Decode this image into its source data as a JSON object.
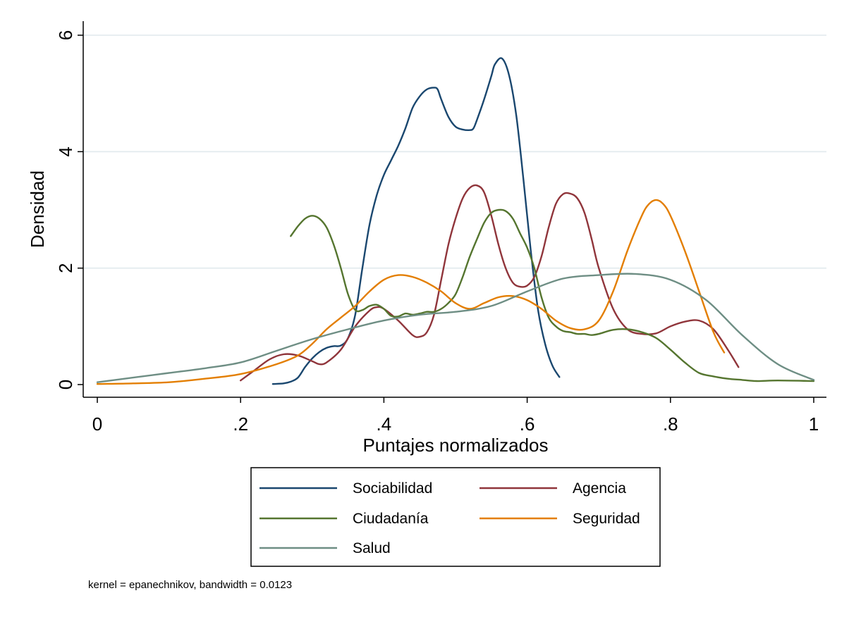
{
  "chart_data": {
    "type": "line",
    "title": "",
    "xlabel": "Puntajes normalizados",
    "ylabel": "Densidad",
    "note": "kernel = epanechnikov, bandwidth = 0.0123",
    "xlim": [
      0,
      1
    ],
    "ylim": [
      0,
      6
    ],
    "x_ticks": [
      0,
      0.2,
      0.4,
      0.6,
      0.8,
      1
    ],
    "x_tick_labels": [
      "0",
      ".2",
      ".4",
      ".6",
      ".8",
      "1"
    ],
    "y_ticks": [
      0,
      2,
      4,
      6
    ],
    "y_tick_labels": [
      "0",
      "2",
      "4",
      "6"
    ],
    "grid": true,
    "legend_position": "bottom",
    "series": [
      {
        "name": "Sociabilidad",
        "color": "#1a476f",
        "points": [
          [
            0.245,
            0.01
          ],
          [
            0.26,
            0.02
          ],
          [
            0.27,
            0.05
          ],
          [
            0.28,
            0.12
          ],
          [
            0.29,
            0.3
          ],
          [
            0.3,
            0.45
          ],
          [
            0.31,
            0.56
          ],
          [
            0.32,
            0.63
          ],
          [
            0.33,
            0.66
          ],
          [
            0.34,
            0.67
          ],
          [
            0.35,
            0.8
          ],
          [
            0.36,
            1.2
          ],
          [
            0.37,
            2.0
          ],
          [
            0.38,
            2.75
          ],
          [
            0.39,
            3.25
          ],
          [
            0.4,
            3.6
          ],
          [
            0.41,
            3.85
          ],
          [
            0.42,
            4.1
          ],
          [
            0.43,
            4.4
          ],
          [
            0.44,
            4.75
          ],
          [
            0.45,
            4.95
          ],
          [
            0.46,
            5.07
          ],
          [
            0.47,
            5.1
          ],
          [
            0.475,
            5.07
          ],
          [
            0.48,
            4.9
          ],
          [
            0.49,
            4.6
          ],
          [
            0.5,
            4.43
          ],
          [
            0.51,
            4.38
          ],
          [
            0.52,
            4.37
          ],
          [
            0.525,
            4.4
          ],
          [
            0.53,
            4.55
          ],
          [
            0.54,
            4.9
          ],
          [
            0.55,
            5.3
          ],
          [
            0.555,
            5.5
          ],
          [
            0.565,
            5.6
          ],
          [
            0.575,
            5.3
          ],
          [
            0.585,
            4.6
          ],
          [
            0.595,
            3.5
          ],
          [
            0.605,
            2.3
          ],
          [
            0.615,
            1.3
          ],
          [
            0.625,
            0.7
          ],
          [
            0.635,
            0.33
          ],
          [
            0.645,
            0.13
          ]
        ]
      },
      {
        "name": "Agencia",
        "color": "#90353b",
        "points": [
          [
            0.2,
            0.07
          ],
          [
            0.22,
            0.25
          ],
          [
            0.24,
            0.43
          ],
          [
            0.26,
            0.52
          ],
          [
            0.28,
            0.5
          ],
          [
            0.3,
            0.4
          ],
          [
            0.31,
            0.35
          ],
          [
            0.32,
            0.38
          ],
          [
            0.34,
            0.6
          ],
          [
            0.36,
            1.0
          ],
          [
            0.38,
            1.27
          ],
          [
            0.39,
            1.33
          ],
          [
            0.4,
            1.3
          ],
          [
            0.42,
            1.1
          ],
          [
            0.44,
            0.85
          ],
          [
            0.45,
            0.82
          ],
          [
            0.46,
            0.9
          ],
          [
            0.47,
            1.2
          ],
          [
            0.48,
            1.8
          ],
          [
            0.49,
            2.4
          ],
          [
            0.5,
            2.85
          ],
          [
            0.51,
            3.2
          ],
          [
            0.52,
            3.38
          ],
          [
            0.53,
            3.42
          ],
          [
            0.54,
            3.3
          ],
          [
            0.55,
            2.9
          ],
          [
            0.56,
            2.4
          ],
          [
            0.57,
            2.0
          ],
          [
            0.58,
            1.75
          ],
          [
            0.59,
            1.68
          ],
          [
            0.6,
            1.7
          ],
          [
            0.61,
            1.85
          ],
          [
            0.62,
            2.2
          ],
          [
            0.63,
            2.7
          ],
          [
            0.64,
            3.1
          ],
          [
            0.65,
            3.27
          ],
          [
            0.66,
            3.28
          ],
          [
            0.67,
            3.2
          ],
          [
            0.68,
            2.95
          ],
          [
            0.69,
            2.5
          ],
          [
            0.7,
            2.0
          ],
          [
            0.72,
            1.3
          ],
          [
            0.74,
            0.95
          ],
          [
            0.76,
            0.87
          ],
          [
            0.78,
            0.88
          ],
          [
            0.8,
            1.0
          ],
          [
            0.82,
            1.08
          ],
          [
            0.84,
            1.1
          ],
          [
            0.86,
            0.95
          ],
          [
            0.88,
            0.6
          ],
          [
            0.895,
            0.3
          ]
        ]
      },
      {
        "name": "Ciudadanía",
        "color": "#55752f",
        "points": [
          [
            0.27,
            2.55
          ],
          [
            0.28,
            2.72
          ],
          [
            0.29,
            2.85
          ],
          [
            0.3,
            2.9
          ],
          [
            0.31,
            2.85
          ],
          [
            0.32,
            2.7
          ],
          [
            0.33,
            2.4
          ],
          [
            0.34,
            2.0
          ],
          [
            0.35,
            1.55
          ],
          [
            0.36,
            1.28
          ],
          [
            0.37,
            1.28
          ],
          [
            0.38,
            1.35
          ],
          [
            0.39,
            1.37
          ],
          [
            0.4,
            1.3
          ],
          [
            0.41,
            1.18
          ],
          [
            0.42,
            1.17
          ],
          [
            0.43,
            1.22
          ],
          [
            0.44,
            1.2
          ],
          [
            0.45,
            1.22
          ],
          [
            0.46,
            1.25
          ],
          [
            0.47,
            1.25
          ],
          [
            0.48,
            1.3
          ],
          [
            0.49,
            1.4
          ],
          [
            0.5,
            1.55
          ],
          [
            0.51,
            1.85
          ],
          [
            0.52,
            2.2
          ],
          [
            0.53,
            2.5
          ],
          [
            0.54,
            2.78
          ],
          [
            0.55,
            2.95
          ],
          [
            0.56,
            3.0
          ],
          [
            0.57,
            2.98
          ],
          [
            0.58,
            2.85
          ],
          [
            0.59,
            2.6
          ],
          [
            0.6,
            2.35
          ],
          [
            0.61,
            2.0
          ],
          [
            0.62,
            1.5
          ],
          [
            0.63,
            1.15
          ],
          [
            0.64,
            1.0
          ],
          [
            0.65,
            0.92
          ],
          [
            0.66,
            0.9
          ],
          [
            0.67,
            0.87
          ],
          [
            0.68,
            0.87
          ],
          [
            0.69,
            0.85
          ],
          [
            0.7,
            0.87
          ],
          [
            0.72,
            0.94
          ],
          [
            0.74,
            0.95
          ],
          [
            0.76,
            0.9
          ],
          [
            0.78,
            0.8
          ],
          [
            0.8,
            0.6
          ],
          [
            0.82,
            0.38
          ],
          [
            0.84,
            0.2
          ],
          [
            0.86,
            0.14
          ],
          [
            0.88,
            0.1
          ],
          [
            0.9,
            0.08
          ],
          [
            0.92,
            0.06
          ],
          [
            0.95,
            0.07
          ],
          [
            1.0,
            0.06
          ]
        ]
      },
      {
        "name": "Seguridad",
        "color": "#e37e00",
        "points": [
          [
            0.0,
            0.01
          ],
          [
            0.05,
            0.02
          ],
          [
            0.1,
            0.04
          ],
          [
            0.15,
            0.1
          ],
          [
            0.2,
            0.18
          ],
          [
            0.25,
            0.35
          ],
          [
            0.28,
            0.5
          ],
          [
            0.3,
            0.7
          ],
          [
            0.32,
            0.95
          ],
          [
            0.34,
            1.15
          ],
          [
            0.36,
            1.35
          ],
          [
            0.38,
            1.6
          ],
          [
            0.4,
            1.8
          ],
          [
            0.42,
            1.88
          ],
          [
            0.44,
            1.85
          ],
          [
            0.46,
            1.75
          ],
          [
            0.48,
            1.6
          ],
          [
            0.5,
            1.4
          ],
          [
            0.52,
            1.3
          ],
          [
            0.54,
            1.4
          ],
          [
            0.56,
            1.5
          ],
          [
            0.58,
            1.52
          ],
          [
            0.6,
            1.45
          ],
          [
            0.62,
            1.3
          ],
          [
            0.64,
            1.1
          ],
          [
            0.66,
            0.97
          ],
          [
            0.68,
            0.95
          ],
          [
            0.7,
            1.1
          ],
          [
            0.72,
            1.6
          ],
          [
            0.74,
            2.3
          ],
          [
            0.76,
            2.9
          ],
          [
            0.77,
            3.1
          ],
          [
            0.78,
            3.17
          ],
          [
            0.79,
            3.1
          ],
          [
            0.8,
            2.9
          ],
          [
            0.82,
            2.3
          ],
          [
            0.84,
            1.6
          ],
          [
            0.86,
            0.9
          ],
          [
            0.875,
            0.55
          ]
        ]
      },
      {
        "name": "Salud",
        "color": "#6e8e84",
        "points": [
          [
            0.0,
            0.04
          ],
          [
            0.05,
            0.12
          ],
          [
            0.1,
            0.2
          ],
          [
            0.15,
            0.28
          ],
          [
            0.2,
            0.38
          ],
          [
            0.25,
            0.58
          ],
          [
            0.3,
            0.78
          ],
          [
            0.35,
            0.95
          ],
          [
            0.4,
            1.1
          ],
          [
            0.45,
            1.2
          ],
          [
            0.5,
            1.25
          ],
          [
            0.55,
            1.35
          ],
          [
            0.6,
            1.6
          ],
          [
            0.65,
            1.82
          ],
          [
            0.7,
            1.88
          ],
          [
            0.75,
            1.9
          ],
          [
            0.8,
            1.8
          ],
          [
            0.85,
            1.45
          ],
          [
            0.9,
            0.85
          ],
          [
            0.95,
            0.35
          ],
          [
            1.0,
            0.08
          ]
        ]
      }
    ]
  }
}
